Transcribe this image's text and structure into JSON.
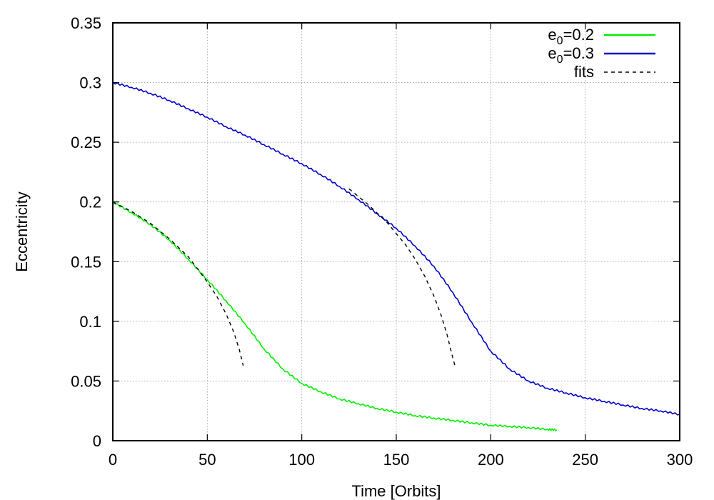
{
  "chart_data": {
    "type": "line",
    "title": "",
    "xlabel": "Time [Orbits]",
    "ylabel": "Eccentricity",
    "xlim": [
      0,
      300
    ],
    "ylim": [
      0,
      0.35
    ],
    "xticks": [
      0,
      50,
      100,
      150,
      200,
      250,
      300
    ],
    "xtick_labels": [
      "0",
      "50",
      "100",
      "150",
      "200",
      "250",
      "300"
    ],
    "yticks": [
      0,
      0.05,
      0.1,
      0.15,
      0.2,
      0.25,
      0.3,
      0.35
    ],
    "ytick_labels": [
      "0",
      "0.05",
      "0.1",
      "0.15",
      "0.2",
      "0.25",
      "0.3",
      "0.35"
    ],
    "grid": true,
    "legend_position": "top-right",
    "series": [
      {
        "legend_main": "e",
        "legend_sub": "0",
        "legend_rest": "=0.2",
        "color": "#00ee00",
        "style": "solid",
        "x": [
          0,
          10,
          20,
          30,
          40,
          50,
          60,
          70,
          80,
          90,
          100,
          110,
          120,
          130,
          140,
          150,
          160,
          170,
          180,
          190,
          200,
          210,
          220,
          230,
          235
        ],
        "y": [
          0.2,
          0.191,
          0.181,
          0.168,
          0.152,
          0.135,
          0.117,
          0.098,
          0.077,
          0.06,
          0.048,
          0.041,
          0.035,
          0.031,
          0.027,
          0.024,
          0.021,
          0.019,
          0.017,
          0.015,
          0.013,
          0.012,
          0.011,
          0.0095,
          0.009
        ]
      },
      {
        "legend_main": "e",
        "legend_sub": "0",
        "legend_rest": "=0.3",
        "color": "#0000cc",
        "style": "solid",
        "x": [
          0,
          10,
          20,
          30,
          40,
          50,
          60,
          70,
          80,
          90,
          100,
          110,
          120,
          130,
          140,
          150,
          160,
          170,
          180,
          190,
          200,
          210,
          220,
          230,
          240,
          250,
          260,
          270,
          280,
          290,
          300
        ],
        "y": [
          0.3,
          0.296,
          0.291,
          0.285,
          0.278,
          0.271,
          0.263,
          0.256,
          0.248,
          0.24,
          0.232,
          0.223,
          0.213,
          0.202,
          0.19,
          0.178,
          0.163,
          0.146,
          0.124,
          0.099,
          0.075,
          0.06,
          0.05,
          0.044,
          0.04,
          0.036,
          0.033,
          0.03,
          0.027,
          0.025,
          0.022
        ]
      },
      {
        "legend_label": "fits",
        "color": "#000000",
        "style": "dashed",
        "segments": [
          {
            "x": [
              0,
              10,
              20,
              30,
              40,
              50,
              55,
              60,
              64,
              67,
              69
            ],
            "y": [
              0.2,
              0.192,
              0.182,
              0.169,
              0.154,
              0.133,
              0.121,
              0.106,
              0.091,
              0.076,
              0.063
            ]
          },
          {
            "x": [
              125,
              135,
              145,
              155,
              160,
              165,
              170,
              174,
              177,
              179,
              181
            ],
            "y": [
              0.211,
              0.198,
              0.183,
              0.164,
              0.152,
              0.138,
              0.121,
              0.104,
              0.088,
              0.075,
              0.063
            ]
          }
        ]
      }
    ]
  }
}
